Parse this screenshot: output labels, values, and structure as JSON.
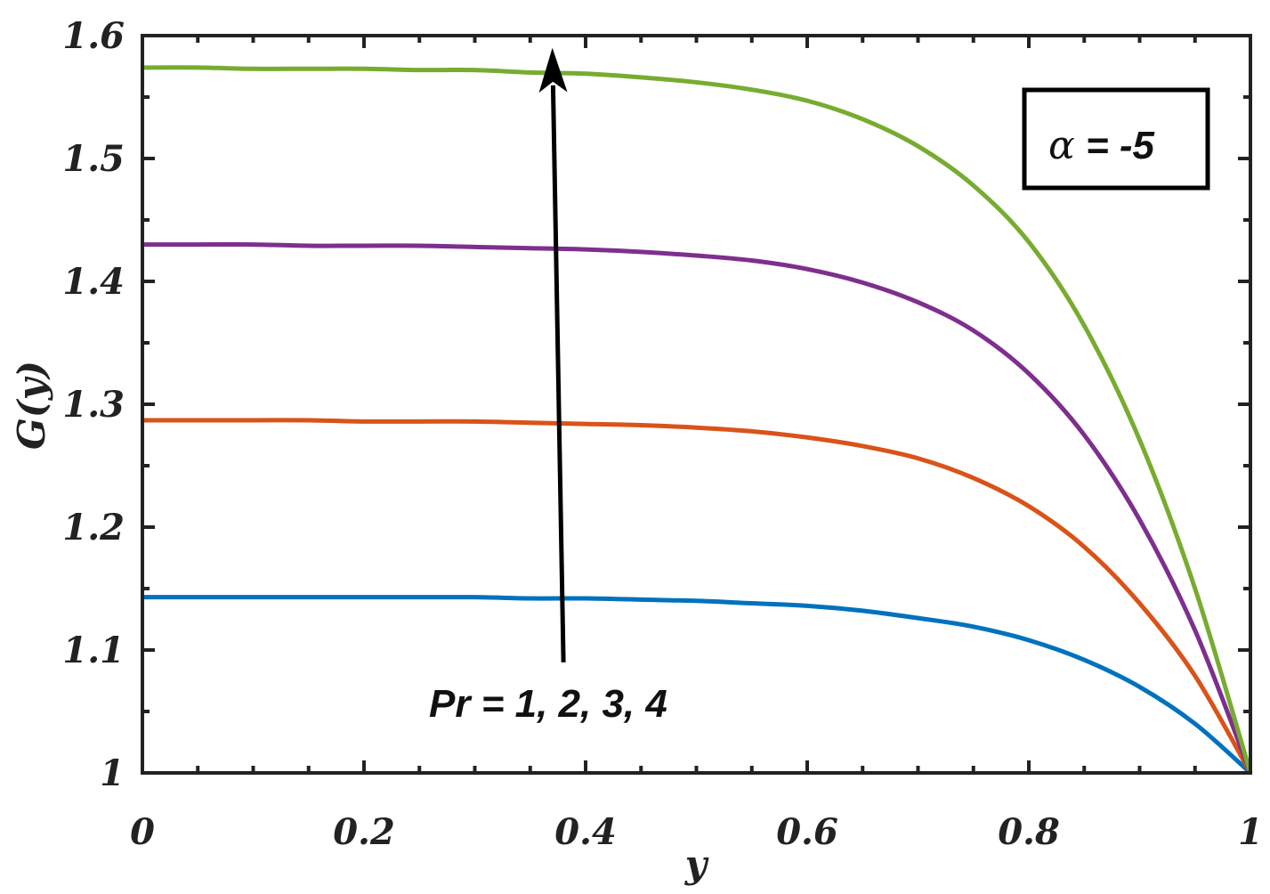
{
  "chart_data": {
    "type": "line",
    "xlabel": "y",
    "ylabel": "G(y)",
    "xlim": [
      0,
      1
    ],
    "ylim": [
      1,
      1.6
    ],
    "x_ticks": [
      "0",
      "0.2",
      "0.4",
      "0.6",
      "0.8",
      "1"
    ],
    "y_ticks": [
      "1",
      "1.1",
      "1.2",
      "1.3",
      "1.4",
      "1.5",
      "1.6"
    ],
    "grid": false,
    "x": [
      0,
      0.05,
      0.1,
      0.15,
      0.2,
      0.25,
      0.3,
      0.35,
      0.4,
      0.45,
      0.5,
      0.55,
      0.6,
      0.65,
      0.7,
      0.75,
      0.8,
      0.85,
      0.9,
      0.95,
      1.0
    ],
    "series": [
      {
        "color": "#0072BD",
        "values": [
          1.143,
          1.143,
          1.143,
          1.143,
          1.143,
          1.143,
          1.143,
          1.142,
          1.142,
          1.141,
          1.14,
          1.138,
          1.136,
          1.132,
          1.126,
          1.119,
          1.108,
          1.092,
          1.07,
          1.04,
          1.0
        ]
      },
      {
        "color": "#D95319",
        "values": [
          1.287,
          1.287,
          1.287,
          1.287,
          1.286,
          1.286,
          1.286,
          1.285,
          1.284,
          1.283,
          1.281,
          1.278,
          1.273,
          1.266,
          1.256,
          1.24,
          1.217,
          1.184,
          1.138,
          1.079,
          1.0
        ]
      },
      {
        "color": "#7E2F8E",
        "values": [
          1.43,
          1.43,
          1.43,
          1.429,
          1.429,
          1.429,
          1.428,
          1.427,
          1.426,
          1.424,
          1.421,
          1.417,
          1.41,
          1.399,
          1.383,
          1.36,
          1.325,
          1.275,
          1.206,
          1.116,
          1.0
        ]
      },
      {
        "color": "#77AC30",
        "values": [
          1.574,
          1.574,
          1.573,
          1.573,
          1.573,
          1.572,
          1.572,
          1.57,
          1.569,
          1.566,
          1.562,
          1.556,
          1.547,
          1.532,
          1.51,
          1.478,
          1.432,
          1.364,
          1.271,
          1.15,
          1.0
        ]
      }
    ],
    "annotations": {
      "arrow_label": "Pr = 1, 2, 3, 4",
      "arrow_from": [
        0.38,
        1.09
      ],
      "arrow_to": [
        0.37,
        1.59
      ],
      "box_symbol": "α",
      "box_text": " = -5",
      "box_placement": "top-right"
    }
  }
}
